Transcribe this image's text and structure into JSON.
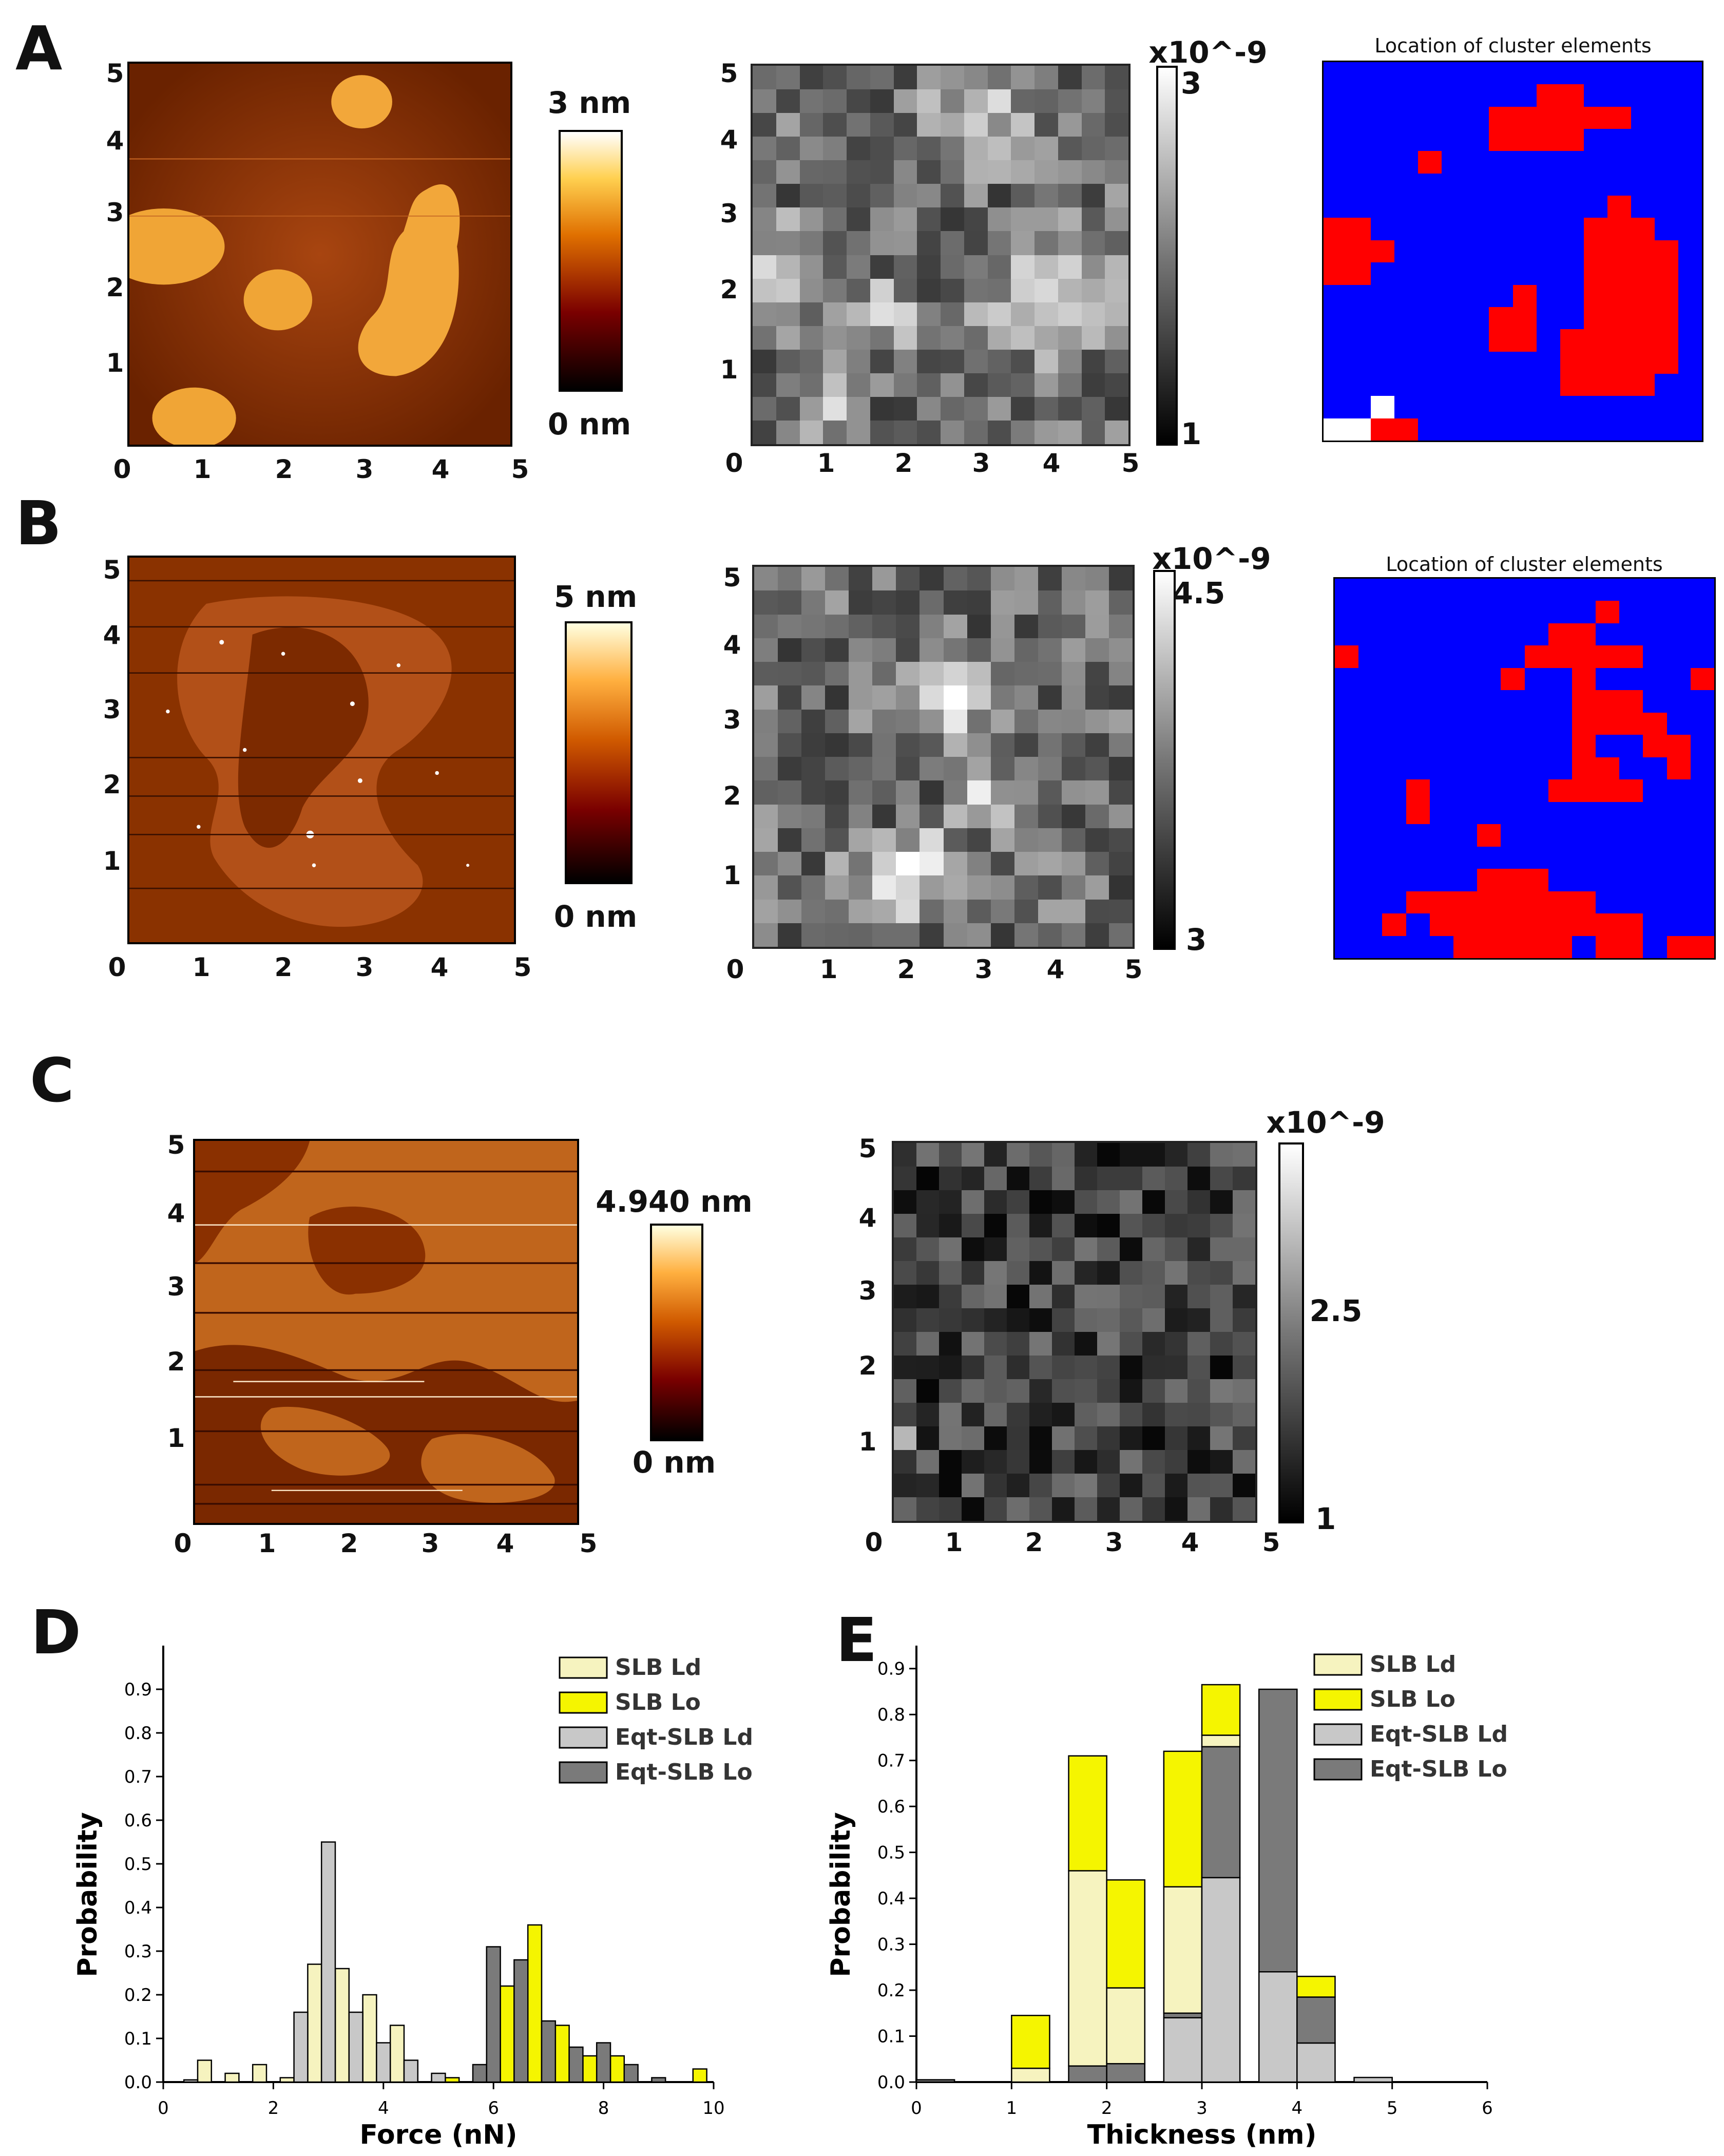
{
  "panels": {
    "A": {
      "label": "A",
      "afm": {
        "x_ticks": [
          "0",
          "1",
          "2",
          "3",
          "4",
          "5"
        ],
        "y_ticks": [
          "1",
          "2",
          "3",
          "4",
          "5"
        ],
        "colorbar_max": "3 nm",
        "colorbar_min": "0 nm"
      },
      "force_map": {
        "x_ticks": [
          "0",
          "1",
          "2",
          "3",
          "4",
          "5"
        ],
        "y_ticks": [
          "1",
          "2",
          "3",
          "4",
          "5"
        ],
        "colorbar_exp": "x10^-9",
        "colorbar_max": "3",
        "colorbar_min": "1"
      },
      "cluster": {
        "title": "Location of cluster elements"
      }
    },
    "B": {
      "label": "B",
      "afm": {
        "x_ticks": [
          "0",
          "1",
          "2",
          "3",
          "4",
          "5"
        ],
        "y_ticks": [
          "1",
          "2",
          "3",
          "4",
          "5"
        ],
        "colorbar_max": "5 nm",
        "colorbar_min": "0 nm"
      },
      "force_map": {
        "x_ticks": [
          "0",
          "1",
          "2",
          "3",
          "4",
          "5"
        ],
        "y_ticks": [
          "1",
          "2",
          "3",
          "4",
          "5"
        ],
        "colorbar_exp": "x10^-9",
        "colorbar_max": "4.5",
        "colorbar_min": "3"
      },
      "cluster": {
        "title": "Location of cluster elements"
      }
    },
    "C": {
      "label": "C",
      "afm": {
        "x_ticks": [
          "0",
          "1",
          "2",
          "3",
          "4",
          "5"
        ],
        "y_ticks": [
          "1",
          "2",
          "3",
          "4",
          "5"
        ],
        "colorbar_max": "4.940 nm",
        "colorbar_min": "0 nm"
      },
      "force_map": {
        "x_ticks": [
          "0",
          "1",
          "2",
          "3",
          "4",
          "5"
        ],
        "y_ticks": [
          "1",
          "2",
          "3",
          "4",
          "5"
        ],
        "colorbar_exp": "x10^-9",
        "colorbar_mid": "2.5",
        "colorbar_min": "1"
      }
    },
    "D": {
      "label": "D"
    },
    "E": {
      "label": "E"
    }
  },
  "colors": {
    "ld": "#f6f3bf",
    "lo": "#f5f500",
    "eqt_ld": "#c8c8c8",
    "eqt_lo": "#7a7a7a",
    "cluster_bg": "#0000ff",
    "cluster_fg": "#ff0000",
    "afm_dark": "#5a1a00",
    "afm_light": "#f7b23a"
  },
  "cluster_maps": {
    "A": [
      "0000000000000000",
      "0000000001100000",
      "0000000111111000",
      "0000000111100000",
      "0000100000000000",
      "0000000000000000",
      "0000000000001000",
      "1100000000011100",
      "1110000000011110",
      "1100000000011110",
      "0000000010011110",
      "0000000110011110",
      "0000000110111110",
      "0000000000111110",
      "0000000000111100",
      "0020000000000000",
      "2211000000000000"
    ],
    "B": [
      "0000000000000000",
      "0000000000010000",
      "0000000001100000",
      "1000000011111000",
      "0000000100100001",
      "0000000000111000",
      "0000000000111100",
      "0000000000100110",
      "0000000000110010",
      "0001000001111000",
      "0001000000000000",
      "0000001000000000",
      "0000000000000000",
      "0000001110000000",
      "0001111111100000",
      "0010111111111000",
      "0000011111011011"
    ]
  },
  "chart_data": [
    {
      "type": "bar",
      "id": "D",
      "title": "",
      "xlabel": "Force (nN)",
      "ylabel": "Probability",
      "xlim": [
        0,
        10
      ],
      "ylim": [
        0,
        1.0
      ],
      "x_ticks": [
        "0",
        "2",
        "4",
        "6",
        "8",
        "10"
      ],
      "y_ticks": [
        "0.0",
        "0.1",
        "0.2",
        "0.3",
        "0.4",
        "0.5",
        "0.6",
        "0.7",
        "0.8",
        "0.9"
      ],
      "legend": [
        "SLB Ld",
        "SLB Lo",
        "Eqt-SLB Ld",
        "Eqt-SLB Lo"
      ],
      "legend_position": "top-right",
      "bin_width": 0.25,
      "series": [
        {
          "name": "SLB Ld",
          "bars": [
            [
              0.75,
              0.05
            ],
            [
              1.25,
              0.02
            ],
            [
              1.75,
              0.04
            ],
            [
              2.25,
              0.01
            ],
            [
              2.75,
              0.27
            ],
            [
              3.25,
              0.26
            ],
            [
              3.75,
              0.2
            ],
            [
              4.25,
              0.13
            ]
          ]
        },
        {
          "name": "SLB Lo",
          "bars": [
            [
              5.25,
              0.01
            ],
            [
              6.25,
              0.22
            ],
            [
              6.75,
              0.36
            ],
            [
              7.25,
              0.13
            ],
            [
              7.75,
              0.06
            ],
            [
              8.25,
              0.06
            ],
            [
              9.75,
              0.03
            ]
          ]
        },
        {
          "name": "Eqt-SLB Ld",
          "bars": [
            [
              0.5,
              0.005
            ],
            [
              2.5,
              0.16
            ],
            [
              3.0,
              0.55
            ],
            [
              3.5,
              0.16
            ],
            [
              4.0,
              0.09
            ],
            [
              4.5,
              0.05
            ],
            [
              5.0,
              0.02
            ]
          ]
        },
        {
          "name": "Eqt-SLB Lo",
          "bars": [
            [
              5.75,
              0.04
            ],
            [
              6.0,
              0.31
            ],
            [
              6.5,
              0.28
            ],
            [
              7.0,
              0.14
            ],
            [
              7.5,
              0.08
            ],
            [
              8.0,
              0.09
            ],
            [
              8.5,
              0.04
            ],
            [
              9.0,
              0.01
            ]
          ]
        }
      ]
    },
    {
      "type": "bar",
      "id": "E",
      "stacked": true,
      "title": "",
      "xlabel": "Thickness (nm)",
      "ylabel": "Probability",
      "xlim": [
        0,
        6
      ],
      "ylim": [
        0,
        0.95
      ],
      "x_ticks": [
        "0",
        "1",
        "2",
        "3",
        "4",
        "5",
        "6"
      ],
      "y_ticks": [
        "0.0",
        "0.1",
        "0.2",
        "0.3",
        "0.4",
        "0.5",
        "0.6",
        "0.7",
        "0.8",
        "0.9"
      ],
      "legend": [
        "SLB Ld",
        "SLB Lo",
        "Eqt-SLB Ld",
        "Eqt-SLB Lo"
      ],
      "legend_position": "top-right",
      "bin_width": 0.4,
      "stacks": [
        {
          "x": 0.2,
          "segments": [
            [
              0.0,
              0.005,
              "eqt_lo"
            ]
          ]
        },
        {
          "x": 1.2,
          "segments": [
            [
              0.0,
              0.03,
              "ld"
            ],
            [
              0.03,
              0.145,
              "lo"
            ]
          ]
        },
        {
          "x": 1.8,
          "segments": [
            [
              0.0,
              0.035,
              "eqt_lo"
            ],
            [
              0.035,
              0.46,
              "ld"
            ],
            [
              0.46,
              0.71,
              "lo"
            ]
          ]
        },
        {
          "x": 2.2,
          "segments": [
            [
              0.0,
              0.04,
              "eqt_lo"
            ],
            [
              0.04,
              0.205,
              "ld"
            ],
            [
              0.205,
              0.44,
              "lo"
            ]
          ]
        },
        {
          "x": 2.8,
          "segments": [
            [
              0.0,
              0.14,
              "eqt_ld"
            ],
            [
              0.14,
              0.15,
              "eqt_lo"
            ],
            [
              0.15,
              0.425,
              "ld"
            ],
            [
              0.425,
              0.72,
              "lo"
            ]
          ]
        },
        {
          "x": 3.2,
          "segments": [
            [
              0.0,
              0.445,
              "eqt_ld"
            ],
            [
              0.445,
              0.73,
              "eqt_lo"
            ],
            [
              0.73,
              0.755,
              "ld"
            ],
            [
              0.755,
              0.865,
              "lo"
            ]
          ]
        },
        {
          "x": 3.8,
          "segments": [
            [
              0.0,
              0.24,
              "eqt_ld"
            ],
            [
              0.24,
              0.855,
              "eqt_lo"
            ]
          ]
        },
        {
          "x": 4.2,
          "segments": [
            [
              0.0,
              0.085,
              "eqt_ld"
            ],
            [
              0.085,
              0.185,
              "eqt_lo"
            ],
            [
              0.185,
              0.23,
              "lo"
            ]
          ]
        },
        {
          "x": 4.8,
          "segments": [
            [
              0.0,
              0.01,
              "eqt_ld"
            ]
          ]
        }
      ]
    }
  ]
}
